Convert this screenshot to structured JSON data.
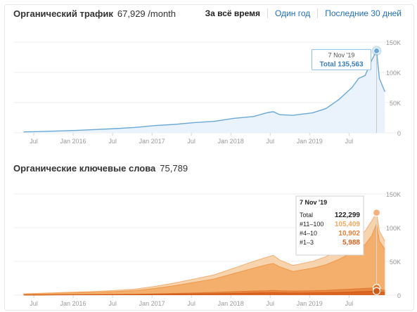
{
  "traffic": {
    "title": "Органический трафик",
    "value": "67,929",
    "unit": "/month"
  },
  "range_tabs": [
    {
      "label": "За всё время",
      "active": true
    },
    {
      "label": "Один год",
      "active": false
    },
    {
      "label": "Последние 30 дней",
      "active": false
    }
  ],
  "keywords": {
    "title": "Органические ключевые слова",
    "value": "75,789"
  },
  "x_axis_labels": [
    "Jul",
    "Jan 2016",
    "Jul",
    "Jan 2017",
    "Jul",
    "Jan 2018",
    "Jul",
    "Jan 2019",
    "Jul"
  ],
  "colors": {
    "traffic_line": "#6aa9d6",
    "traffic_fill": "#eaf3fb",
    "total": "#f6cfa4",
    "top100": "#f2a85f",
    "top10": "#e8803a",
    "top3": "#d9601c",
    "link": "#1f6fbf"
  },
  "chart_data": [
    {
      "type": "area",
      "x": [
        "2015-05",
        "2015-07",
        "2015-10",
        "2016-01",
        "2016-04",
        "2016-07",
        "2016-10",
        "2017-01",
        "2017-04",
        "2017-07",
        "2017-10",
        "2018-01",
        "2018-04",
        "2018-06",
        "2018-07",
        "2018-08",
        "2018-10",
        "2019-01",
        "2019-03",
        "2019-05",
        "2019-07",
        "2019-08",
        "2019-09",
        "2019-10",
        "2019-11-07",
        "2019-11-20",
        "2019-12"
      ],
      "series": [
        {
          "values": [
            1500,
            2000,
            3000,
            4000,
            5500,
            7000,
            9000,
            12000,
            14000,
            17000,
            19000,
            24000,
            27000,
            33000,
            35000,
            30000,
            29000,
            33000,
            40000,
            55000,
            75000,
            90000,
            95000,
            120000,
            135563,
            90000,
            68000
          ]
        }
      ],
      "ylim": [
        0,
        150000
      ],
      "yticks": [
        {
          "value": 0,
          "label": "0"
        },
        {
          "value": 50000,
          "label": "50K"
        },
        {
          "value": 100000,
          "label": "100K"
        },
        {
          "value": 150000,
          "label": "150K"
        }
      ],
      "tooltip": {
        "date": "7 Nov '19",
        "label": "Total",
        "value": "135,563"
      },
      "grid": true
    },
    {
      "type": "area",
      "x": [
        "2015-05",
        "2015-07",
        "2015-10",
        "2016-01",
        "2016-04",
        "2016-07",
        "2016-10",
        "2017-01",
        "2017-04",
        "2017-07",
        "2017-10",
        "2018-01",
        "2018-04",
        "2018-06",
        "2018-07",
        "2018-08",
        "2018-10",
        "2019-01",
        "2019-03",
        "2019-05",
        "2019-07",
        "2019-08",
        "2019-09",
        "2019-10",
        "2019-11-07",
        "2019-11-20",
        "2019-12"
      ],
      "series": [
        {
          "name": "Total",
          "values": [
            2000,
            2500,
            3500,
            4500,
            5500,
            7000,
            9000,
            13000,
            18000,
            24000,
            30000,
            40000,
            50000,
            56000,
            59000,
            52000,
            44000,
            50000,
            57000,
            66000,
            78000,
            88000,
            95000,
            110000,
            122299,
            95000,
            80000
          ]
        },
        {
          "name": "#11–100",
          "values": [
            1500,
            1900,
            2600,
            3400,
            4200,
            5300,
            6800,
            10000,
            14000,
            19000,
            24000,
            32000,
            40000,
            45000,
            47000,
            42000,
            35000,
            40000,
            45000,
            53000,
            63000,
            70000,
            75000,
            88000,
            105409,
            80000,
            68000
          ]
        },
        {
          "name": "#4–10",
          "values": [
            300,
            350,
            500,
            600,
            700,
            900,
            1200,
            1800,
            2500,
            3200,
            4000,
            5000,
            6000,
            6500,
            7000,
            6500,
            6000,
            6500,
            7000,
            8000,
            9000,
            9500,
            10000,
            10500,
            10902,
            8500,
            7000
          ]
        },
        {
          "name": "#1–3",
          "values": [
            200,
            250,
            400,
            500,
            600,
            800,
            1000,
            1200,
            1500,
            1800,
            2000,
            2500,
            3000,
            3300,
            3500,
            3300,
            3100,
            3300,
            3500,
            4000,
            4500,
            5000,
            5300,
            5600,
            5988,
            4800,
            4000
          ]
        }
      ],
      "ylim": [
        0,
        150000
      ],
      "yticks": [
        {
          "value": 0,
          "label": "0"
        },
        {
          "value": 50000,
          "label": "50K"
        },
        {
          "value": 100000,
          "label": "100K"
        },
        {
          "value": 150000,
          "label": "150K"
        }
      ],
      "tooltip": {
        "date": "7 Nov '19",
        "rows": [
          {
            "label": "Total",
            "value": "122,299"
          },
          {
            "label": "#11–100",
            "value": "105,409"
          },
          {
            "label": "#4–10",
            "value": "10,902"
          },
          {
            "label": "#1–3",
            "value": "5,988"
          }
        ]
      },
      "grid": true
    }
  ]
}
